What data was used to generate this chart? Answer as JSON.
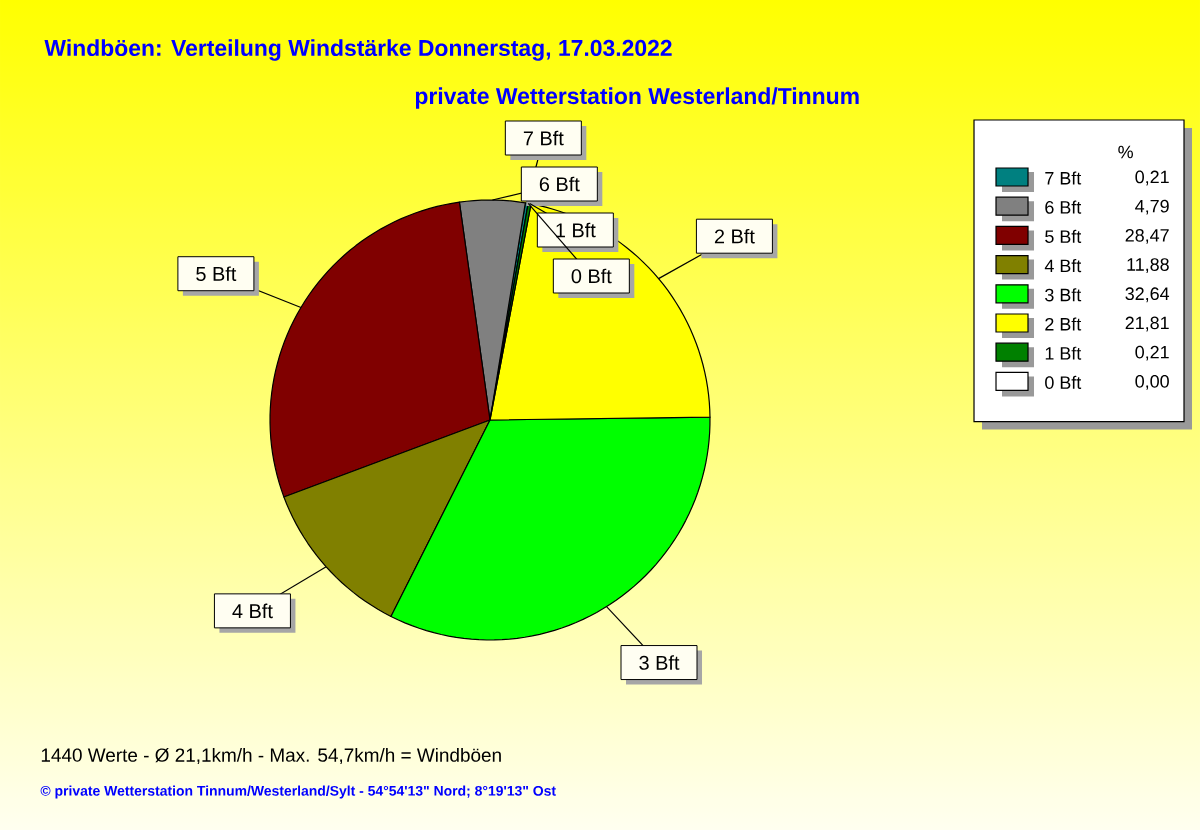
{
  "chart_data": {
    "type": "pie",
    "title": "Windböen: Verteilung Windstärke  Donnerstag, 17.03.2022",
    "subtitle": "private Wetterstation Westerland/Tinnum",
    "legend_title": "%",
    "legend": "top right",
    "categories": [
      "7 Bft",
      "6 Bft",
      "5 Bft",
      "4 Bft",
      "3 Bft",
      "2 Bft",
      "1 Bft",
      "0 Bft"
    ],
    "values": [
      0.21,
      4.79,
      28.47,
      11.88,
      32.64,
      21.81,
      0.21,
      0
    ],
    "value_labels": [
      "0,21",
      "4,79",
      "28,47",
      "11,88",
      "32,64",
      "21,81",
      "0,21",
      "0,00"
    ],
    "colors": [
      "#008080",
      "#808080",
      "#800000",
      "#808000",
      "#00ff00",
      "#ffff00",
      "#008000",
      "#ffffff"
    ],
    "annotations": [
      "1440 Werte   -   Ø 21,1km/h  -  Max. 54,7km/h = Windböen",
      "© private Wetterstation Tinnum/Westerland/Sylt   -   54°54'13\" Nord; 8°19'13\" Ost"
    ]
  }
}
